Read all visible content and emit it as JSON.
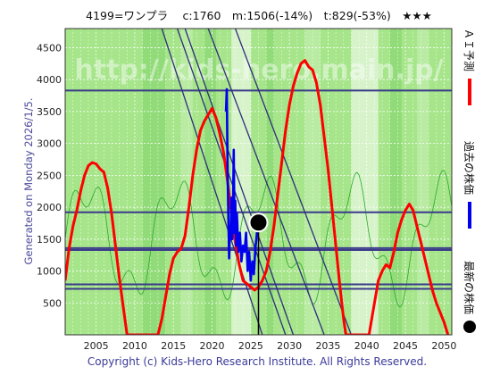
{
  "chart_data": {
    "type": "line",
    "title": "4199=ワンプラ　 c:1760　m:1506(-14%)　t:829(-53%)　★★★",
    "xlim": [
      2001,
      2051
    ],
    "ylim": [
      0,
      4800
    ],
    "x_ticks": [
      2005,
      2010,
      2015,
      2020,
      2025,
      2030,
      2035,
      2040,
      2045,
      2050
    ],
    "y_ticks": [
      500,
      1000,
      1500,
      2000,
      2500,
      3000,
      3500,
      4000,
      4500
    ],
    "side_label": "Generated on Monday 2026/1/5.",
    "footer": "Copyright (c) Kids-Hero Research Institute. All Rights Reserved.",
    "watermark": "http://kids-hero.main.jp/",
    "legend": [
      {
        "label": "ＡＩ予測",
        "color": "#ff0000"
      },
      {
        "label": "過去の株価",
        "color": "#0000ee"
      },
      {
        "label": "最新の株価",
        "color": "#000000"
      }
    ],
    "horizontal_levels": [
      3830,
      1920,
      1360,
      1330,
      790,
      720
    ],
    "latest_point": {
      "x": 2026.0,
      "y": 1760
    },
    "series": [
      {
        "name": "ＡＩ予測",
        "color": "#ff0000",
        "points": [
          [
            2001,
            850
          ],
          [
            2001.5,
            1350
          ],
          [
            2002,
            1700
          ],
          [
            2002.5,
            1950
          ],
          [
            2003,
            2250
          ],
          [
            2003.5,
            2500
          ],
          [
            2004,
            2650
          ],
          [
            2004.5,
            2700
          ],
          [
            2005,
            2680
          ],
          [
            2005.5,
            2600
          ],
          [
            2006,
            2550
          ],
          [
            2006.5,
            2300
          ],
          [
            2007,
            1900
          ],
          [
            2007.5,
            1400
          ],
          [
            2008,
            900
          ],
          [
            2008.5,
            450
          ],
          [
            2009,
            0
          ],
          [
            2013,
            0
          ],
          [
            2013.5,
            250
          ],
          [
            2014,
            600
          ],
          [
            2014.5,
            950
          ],
          [
            2015,
            1200
          ],
          [
            2015.5,
            1300
          ],
          [
            2016,
            1350
          ],
          [
            2016.5,
            1550
          ],
          [
            2017,
            2000
          ],
          [
            2017.5,
            2500
          ],
          [
            2018,
            2900
          ],
          [
            2018.5,
            3200
          ],
          [
            2019,
            3350
          ],
          [
            2019.5,
            3450
          ],
          [
            2020,
            3550
          ],
          [
            2020.5,
            3400
          ],
          [
            2021,
            3150
          ],
          [
            2021.5,
            2850
          ],
          [
            2022,
            2400
          ],
          [
            2022.5,
            1900
          ],
          [
            2023,
            1450
          ],
          [
            2023.5,
            1100
          ],
          [
            2024,
            850
          ],
          [
            2024.5,
            800
          ],
          [
            2025,
            750
          ],
          [
            2025.5,
            700
          ],
          [
            2026,
            750
          ],
          [
            2026.5,
            850
          ],
          [
            2027,
            1000
          ],
          [
            2027.5,
            1300
          ],
          [
            2028,
            1700
          ],
          [
            2028.5,
            2200
          ],
          [
            2029,
            2700
          ],
          [
            2029.5,
            3200
          ],
          [
            2030,
            3600
          ],
          [
            2030.5,
            3900
          ],
          [
            2031,
            4100
          ],
          [
            2031.5,
            4250
          ],
          [
            2032,
            4300
          ],
          [
            2032.5,
            4200
          ],
          [
            2033,
            4150
          ],
          [
            2033.5,
            3950
          ],
          [
            2034,
            3600
          ],
          [
            2034.5,
            3100
          ],
          [
            2035,
            2600
          ],
          [
            2035.5,
            2000
          ],
          [
            2036,
            1400
          ],
          [
            2036.5,
            800
          ],
          [
            2037,
            250
          ],
          [
            2037.3,
            0
          ],
          [
            2040.3,
            0
          ],
          [
            2041,
            500
          ],
          [
            2041.5,
            850
          ],
          [
            2042,
            1000
          ],
          [
            2042.5,
            1100
          ],
          [
            2043,
            1050
          ],
          [
            2043.5,
            1300
          ],
          [
            2044,
            1600
          ],
          [
            2044.5,
            1800
          ],
          [
            2045,
            1950
          ],
          [
            2045.5,
            2050
          ],
          [
            2046,
            1950
          ],
          [
            2046.5,
            1700
          ],
          [
            2047,
            1450
          ],
          [
            2047.5,
            1200
          ],
          [
            2048,
            950
          ],
          [
            2048.5,
            700
          ],
          [
            2049,
            500
          ],
          [
            2049.5,
            350
          ],
          [
            2050,
            200
          ],
          [
            2050.5,
            0
          ]
        ]
      },
      {
        "name": "過去の株価",
        "color": "#0000ee",
        "points": [
          [
            2021.8,
            3500
          ],
          [
            2021.9,
            3850
          ],
          [
            2022.0,
            2600
          ],
          [
            2022.1,
            1900
          ],
          [
            2022.2,
            1200
          ],
          [
            2022.3,
            1700
          ],
          [
            2022.4,
            1500
          ],
          [
            2022.5,
            2150
          ],
          [
            2022.6,
            1500
          ],
          [
            2022.7,
            1950
          ],
          [
            2022.8,
            2900
          ],
          [
            2022.9,
            1600
          ],
          [
            2023.0,
            2100
          ],
          [
            2023.1,
            1400
          ],
          [
            2023.2,
            1900
          ],
          [
            2023.4,
            1300
          ],
          [
            2023.6,
            1600
          ],
          [
            2023.8,
            1150
          ],
          [
            2024.0,
            1400
          ],
          [
            2024.2,
            1300
          ],
          [
            2024.4,
            1600
          ],
          [
            2024.6,
            1000
          ],
          [
            2024.8,
            1300
          ],
          [
            2025.0,
            850
          ],
          [
            2025.2,
            1150
          ],
          [
            2025.4,
            950
          ],
          [
            2025.6,
            1350
          ],
          [
            2025.8,
            1600
          ],
          [
            2026.0,
            1760
          ]
        ]
      }
    ]
  }
}
